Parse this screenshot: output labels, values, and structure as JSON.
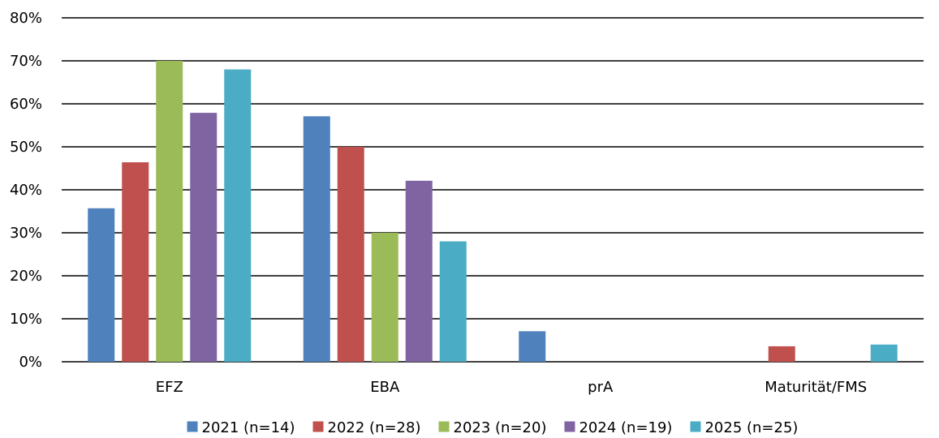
{
  "chart_data": {
    "type": "bar",
    "title": "",
    "xlabel": "",
    "ylabel": "",
    "ylim": [
      0,
      80
    ],
    "y_ticks": [
      "0%",
      "10%",
      "20%",
      "30%",
      "40%",
      "50%",
      "60%",
      "70%",
      "80%"
    ],
    "y_unit": "%",
    "grid": true,
    "legend_position": "bottom",
    "categories": [
      "EFZ",
      "EBA",
      "prA",
      "Maturität/FMS"
    ],
    "series": [
      {
        "name": "2021 (n=14)",
        "color": "#4F81BD",
        "values": [
          35.7,
          57.1,
          7.1,
          0
        ]
      },
      {
        "name": "2022 (n=28)",
        "color": "#C0504D",
        "values": [
          46.4,
          50.0,
          0,
          3.6
        ]
      },
      {
        "name": "2023 (n=20)",
        "color": "#9BBB59",
        "values": [
          70.0,
          30.0,
          0,
          0
        ]
      },
      {
        "name": "2024 (n=19)",
        "color": "#8064A2",
        "values": [
          57.9,
          42.1,
          0,
          0
        ]
      },
      {
        "name": "2025 (n=25)",
        "color": "#4BACC6",
        "values": [
          68.0,
          28.0,
          0,
          4.0
        ]
      }
    ]
  }
}
